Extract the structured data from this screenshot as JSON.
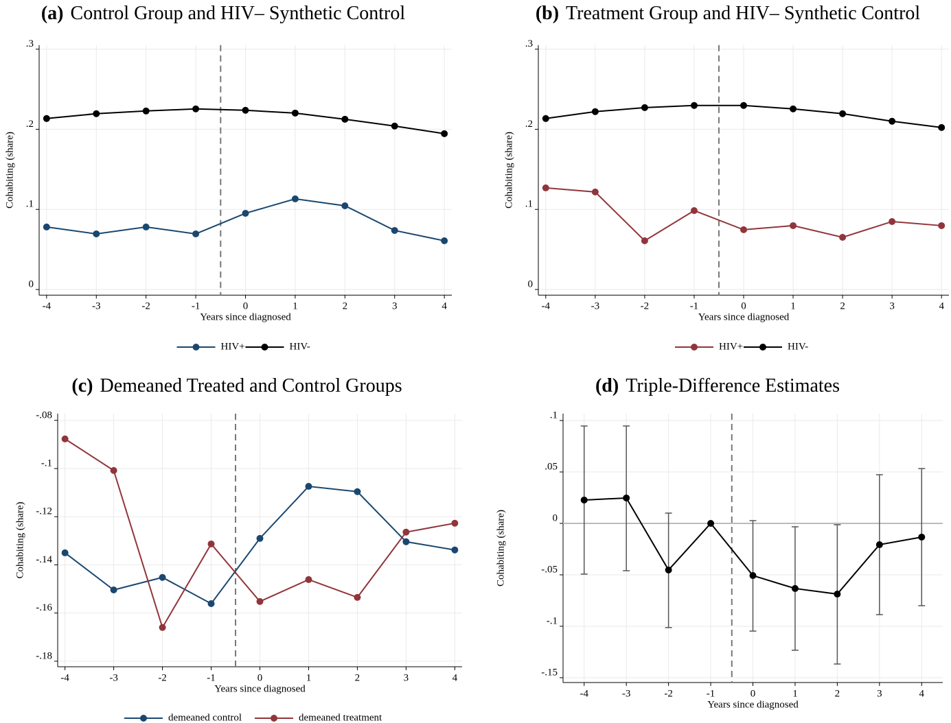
{
  "chart_data": [
    {
      "type": "line",
      "label": "(a)",
      "title": "Control Group and HIV– Synthetic Control",
      "xlabel": "Years since diagnosed",
      "ylabel": "Cohabiting (share)",
      "x": [
        -4,
        -3,
        -2,
        -1,
        0,
        1,
        2,
        3,
        4
      ],
      "xlim": [
        -4.15,
        4.15
      ],
      "xticks": [
        -4,
        -3,
        -2,
        -1,
        0,
        1,
        2,
        3,
        4
      ],
      "ylim": [
        -0.007,
        0.305
      ],
      "yticks": [
        0,
        {
          "value": 0.1,
          "label": ".1"
        },
        {
          "value": 0.2,
          "label": ".2"
        },
        {
          "value": 0.3,
          "label": ".3"
        }
      ],
      "vline": -0.5,
      "grid": true,
      "legend": "bottom",
      "series": [
        {
          "name": "HIV+",
          "color": "#1a476f",
          "values": [
            0.078,
            0.0694,
            0.078,
            0.0694,
            0.0951,
            0.1131,
            0.1045,
            0.0737,
            0.0608
          ]
        },
        {
          "name": "HIV-",
          "color": "#000000",
          "values": [
            0.2134,
            0.2194,
            0.2228,
            0.2254,
            0.2237,
            0.2202,
            0.2125,
            0.204,
            0.1945
          ]
        }
      ]
    },
    {
      "type": "line",
      "label": "(b)",
      "title": "Treatment Group and HIV– Synthetic Control",
      "xlabel": "Years since diagnosed",
      "ylabel": "Cohabiting (share)",
      "x": [
        -4,
        -3,
        -2,
        -1,
        0,
        1,
        2,
        3,
        4
      ],
      "xlim": [
        -4.15,
        4.15
      ],
      "xticks": [
        -4,
        -3,
        -2,
        -1,
        0,
        1,
        2,
        3,
        4
      ],
      "ylim": [
        -0.007,
        0.305
      ],
      "yticks": [
        0,
        {
          "value": 0.1,
          "label": ".1"
        },
        {
          "value": 0.2,
          "label": ".2"
        },
        {
          "value": 0.3,
          "label": ".3"
        }
      ],
      "vline": -0.5,
      "grid": true,
      "legend": "bottom",
      "series": [
        {
          "name": "HIV+",
          "color": "#90353b",
          "values": [
            0.1268,
            0.1217,
            0.0608,
            0.0985,
            0.0746,
            0.0797,
            0.0651,
            0.0848,
            0.0797
          ]
        },
        {
          "name": "HIV-",
          "color": "#000000",
          "values": [
            0.2134,
            0.222,
            0.227,
            0.2297,
            0.2297,
            0.2254,
            0.2194,
            0.21,
            0.2022
          ]
        }
      ]
    },
    {
      "type": "line",
      "label": "(c)",
      "title": "Demeaned Treated and Control Groups",
      "xlabel": "Years since diagnosed",
      "ylabel": "Cohabiting (share)",
      "x": [
        -4,
        -3,
        -2,
        -1,
        0,
        1,
        2,
        3,
        4
      ],
      "xlim": [
        -4.15,
        4.15
      ],
      "xticks": [
        -4,
        -3,
        -2,
        -1,
        0,
        1,
        2,
        3,
        4
      ],
      "ylim": [
        -0.1823,
        -0.0772
      ],
      "yticks": [
        {
          "value": -0.18,
          "label": "-.18"
        },
        {
          "value": -0.16,
          "label": "-.16"
        },
        {
          "value": -0.14,
          "label": "-.14"
        },
        {
          "value": -0.12,
          "label": "-.12"
        },
        {
          "value": -0.1,
          "label": "-.1"
        },
        {
          "value": -0.08,
          "label": "-.08"
        }
      ],
      "vline": -0.5,
      "grid": true,
      "legend": "bottom",
      "series": [
        {
          "name": "demeaned control",
          "color": "#1a476f",
          "values": [
            -0.135,
            -0.1504,
            -0.1452,
            -0.1561,
            -0.129,
            -0.1074,
            -0.1096,
            -0.1304,
            -0.1338
          ]
        },
        {
          "name": "demeaned treatment",
          "color": "#90353b",
          "values": [
            -0.0877,
            -0.1008,
            -0.166,
            -0.1313,
            -0.1552,
            -0.1461,
            -0.1535,
            -0.1264,
            -0.1227
          ]
        }
      ]
    },
    {
      "type": "errorbar",
      "label": "(d)",
      "title": "Triple-Difference Estimates",
      "xlabel": "Years since diagnosed",
      "ylabel": "Cohabiting (share)",
      "x": [
        -4,
        -3,
        -2,
        -1,
        0,
        1,
        2,
        3,
        4
      ],
      "xlim": [
        -4.5,
        4.5
      ],
      "xticks": [
        -4,
        -3,
        -2,
        -1,
        0,
        1,
        2,
        3,
        4
      ],
      "ylim": [
        -0.1547,
        0.1067
      ],
      "yticks": [
        {
          "value": -0.15,
          "label": "-.15"
        },
        {
          "value": -0.1,
          "label": "-.1"
        },
        {
          "value": -0.05,
          "label": "-.05"
        },
        0,
        {
          "value": 0.05,
          "label": ".05"
        },
        {
          "value": 0.1,
          "label": ".1"
        }
      ],
      "vline": -0.5,
      "hline": 0,
      "grid": true,
      "series": [
        {
          "color": "#000000",
          "values": [
            0.0227,
            0.0247,
            -0.0453,
            0,
            -0.0507,
            -0.0633,
            -0.0687,
            -0.0207,
            -0.0133
          ],
          "lower": [
            -0.0493,
            -0.046,
            -0.1013,
            null,
            -0.1047,
            -0.1233,
            -0.1367,
            -0.0887,
            -0.08
          ],
          "upper": [
            0.0947,
            0.0947,
            0.01,
            null,
            0.0027,
            -0.0033,
            -0.0013,
            0.0473,
            0.0533
          ]
        }
      ]
    }
  ]
}
